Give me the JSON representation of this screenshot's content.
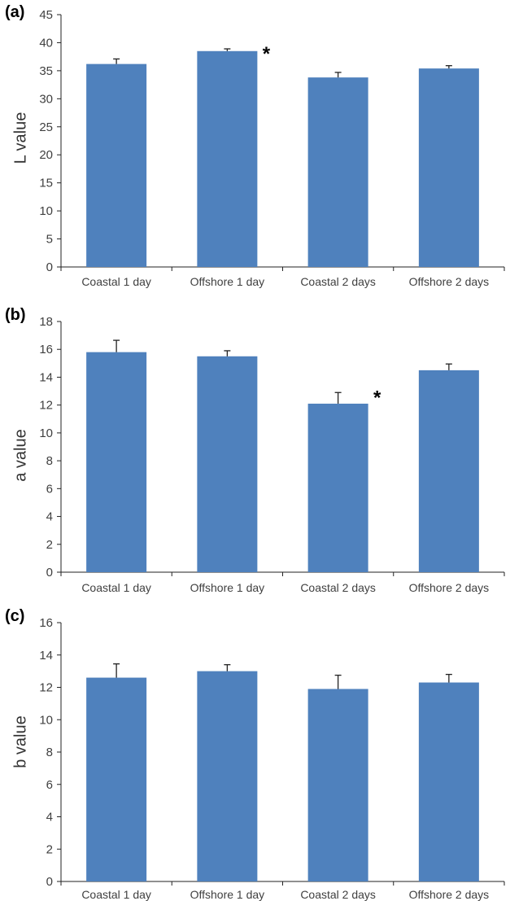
{
  "chart_data": [
    {
      "panel_label": "(a)",
      "type": "bar",
      "categories": [
        "Coastal 1 day",
        "Offshore 1 day",
        "Coastal 2 days",
        "Offshore 2 days"
      ],
      "values": [
        36.2,
        38.5,
        33.8,
        35.4
      ],
      "errors": [
        0.9,
        0.4,
        0.9,
        0.5
      ],
      "significance": [
        "",
        "*",
        "",
        ""
      ],
      "ylabel": "L value",
      "ylim": [
        0,
        45
      ],
      "yticks": [
        0,
        5,
        10,
        15,
        20,
        25,
        30,
        35,
        40,
        45
      ],
      "bar_color": "#4f81bd",
      "grid": false
    },
    {
      "panel_label": "(b)",
      "type": "bar",
      "categories": [
        "Coastal 1 day",
        "Offshore 1 day",
        "Coastal 2 days",
        "Offshore 2 days"
      ],
      "values": [
        15.8,
        15.5,
        12.1,
        14.5
      ],
      "errors": [
        0.85,
        0.4,
        0.8,
        0.45
      ],
      "significance": [
        "",
        "",
        "*",
        ""
      ],
      "ylabel": "a value",
      "ylim": [
        0,
        18
      ],
      "yticks": [
        0,
        2,
        4,
        6,
        8,
        10,
        12,
        14,
        16,
        18
      ],
      "bar_color": "#4f81bd",
      "grid": false
    },
    {
      "panel_label": "(c)",
      "type": "bar",
      "categories": [
        "Coastal 1 day",
        "Offshore 1 day",
        "Coastal 2 days",
        "Offshore 2 days"
      ],
      "values": [
        12.6,
        13.0,
        11.9,
        12.3
      ],
      "errors": [
        0.85,
        0.4,
        0.85,
        0.5
      ],
      "significance": [
        "",
        "",
        "",
        ""
      ],
      "ylabel": "b value",
      "ylim": [
        0,
        16
      ],
      "yticks": [
        0,
        2,
        4,
        6,
        8,
        10,
        12,
        14,
        16
      ],
      "bar_color": "#4f81bd",
      "grid": false
    }
  ]
}
